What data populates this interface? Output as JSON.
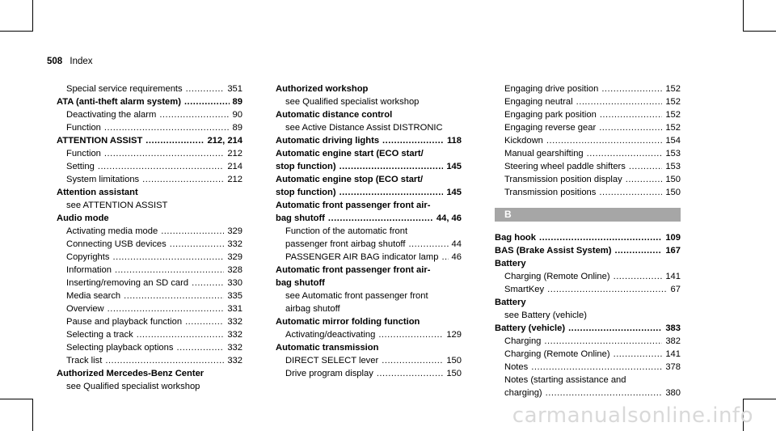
{
  "header": {
    "page_number": "508",
    "title": "Index"
  },
  "col1": [
    {
      "text": "Special service requirements",
      "page": "351",
      "style": "sub"
    },
    {
      "text": "ATA (anti-theft alarm system)",
      "page": "89",
      "style": "head"
    },
    {
      "text": "Deactivating the alarm",
      "page": "90",
      "style": "sub"
    },
    {
      "text": "Function",
      "page": "89",
      "style": "sub"
    },
    {
      "text": "ATTENTION ASSIST",
      "page": "212, 214",
      "style": "head"
    },
    {
      "text": "Function",
      "page": "212",
      "style": "sub"
    },
    {
      "text": "Setting",
      "page": "214",
      "style": "sub"
    },
    {
      "text": "System limitations",
      "page": "212",
      "style": "sub"
    },
    {
      "text": "Attention assistant",
      "page": "",
      "style": "head"
    },
    {
      "text": "see ATTENTION ASSIST",
      "page": "",
      "style": "sub"
    },
    {
      "text": "Audio mode",
      "page": "",
      "style": "head"
    },
    {
      "text": "Activating media mode",
      "page": "329",
      "style": "sub"
    },
    {
      "text": "Connecting USB devices",
      "page": "332",
      "style": "sub"
    },
    {
      "text": "Copyrights",
      "page": "329",
      "style": "sub"
    },
    {
      "text": "Information",
      "page": "328",
      "style": "sub"
    },
    {
      "text": "Inserting/removing an SD card",
      "page": "330",
      "style": "sub"
    },
    {
      "text": "Media search",
      "page": "335",
      "style": "sub"
    },
    {
      "text": "Overview",
      "page": "331",
      "style": "sub"
    },
    {
      "text": "Pause and playback function",
      "page": "332",
      "style": "sub"
    },
    {
      "text": "Selecting a track",
      "page": "332",
      "style": "sub"
    },
    {
      "text": "Selecting playback options",
      "page": "332",
      "style": "sub"
    },
    {
      "text": "Track list",
      "page": "332",
      "style": "sub"
    },
    {
      "text": "Authorized Mercedes-Benz Center",
      "page": "",
      "style": "head"
    },
    {
      "text": "see Qualified specialist workshop",
      "page": "",
      "style": "sub"
    }
  ],
  "col2": [
    {
      "text": "Authorized workshop",
      "page": "",
      "style": "head"
    },
    {
      "text": "see Qualified specialist workshop",
      "page": "",
      "style": "sub"
    },
    {
      "text": "Automatic distance control",
      "page": "",
      "style": "head"
    },
    {
      "text": "see Active Distance Assist DISTRONIC",
      "page": "",
      "style": "sub"
    },
    {
      "text": "Automatic driving lights",
      "page": "118",
      "style": "head"
    },
    {
      "text": "Automatic engine start (ECO start/",
      "page": "",
      "style": "head"
    },
    {
      "text": "stop function)",
      "page": "145",
      "style": "head"
    },
    {
      "text": "Automatic engine stop (ECO start/",
      "page": "",
      "style": "head"
    },
    {
      "text": "stop function)",
      "page": "145",
      "style": "head"
    },
    {
      "text": "Automatic front passenger front air-",
      "page": "",
      "style": "head"
    },
    {
      "text": "bag shutoff",
      "page": "44, 46",
      "style": "head"
    },
    {
      "text": "Function of the automatic front",
      "page": "",
      "style": "sub"
    },
    {
      "text": "passenger front airbag shutoff",
      "page": "44",
      "style": "sub"
    },
    {
      "text": "PASSENGER AIR BAG indicator lamp",
      "page": "46",
      "style": "sub"
    },
    {
      "text": "Automatic front passenger front air-",
      "page": "",
      "style": "head"
    },
    {
      "text": "bag shutoff",
      "page": "",
      "style": "head"
    },
    {
      "text": "see Automatic front passenger front",
      "page": "",
      "style": "sub"
    },
    {
      "text": "airbag shutoff",
      "page": "",
      "style": "sub"
    },
    {
      "text": "Automatic mirror folding function",
      "page": "",
      "style": "head"
    },
    {
      "text": "Activating/deactivating",
      "page": "129",
      "style": "sub"
    },
    {
      "text": "Automatic transmission",
      "page": "",
      "style": "head"
    },
    {
      "text": "DIRECT SELECT lever",
      "page": "150",
      "style": "sub"
    },
    {
      "text": "Drive program display",
      "page": "150",
      "style": "sub"
    }
  ],
  "col3_top": [
    {
      "text": "Engaging drive position",
      "page": "152",
      "style": "sub"
    },
    {
      "text": "Engaging neutral",
      "page": "152",
      "style": "sub"
    },
    {
      "text": "Engaging park position",
      "page": "152",
      "style": "sub"
    },
    {
      "text": "Engaging reverse gear",
      "page": "152",
      "style": "sub"
    },
    {
      "text": "Kickdown",
      "page": "154",
      "style": "sub"
    },
    {
      "text": "Manual gearshifting",
      "page": "153",
      "style": "sub"
    },
    {
      "text": "Steering wheel paddle shifters",
      "page": "153",
      "style": "sub"
    },
    {
      "text": "Transmission position display",
      "page": "150",
      "style": "sub"
    },
    {
      "text": "Transmission positions",
      "page": "150",
      "style": "sub"
    }
  ],
  "section_letter": "B",
  "col3_bottom": [
    {
      "text": "Bag hook",
      "page": "109",
      "style": "head"
    },
    {
      "text": "BAS (Brake Assist System)",
      "page": "167",
      "style": "head"
    },
    {
      "text": "Battery",
      "page": "",
      "style": "head"
    },
    {
      "text": "Charging (Remote Online)",
      "page": "141",
      "style": "sub"
    },
    {
      "text": "SmartKey",
      "page": "67",
      "style": "sub"
    },
    {
      "text": "Battery",
      "page": "",
      "style": "head"
    },
    {
      "text": "see Battery (vehicle)",
      "page": "",
      "style": "sub"
    },
    {
      "text": "Battery (vehicle)",
      "page": "383",
      "style": "head"
    },
    {
      "text": "Charging",
      "page": "382",
      "style": "sub"
    },
    {
      "text": "Charging (Remote Online)",
      "page": "141",
      "style": "sub"
    },
    {
      "text": "Notes",
      "page": "378",
      "style": "sub"
    },
    {
      "text": "Notes (starting assistance and",
      "page": "",
      "style": "sub"
    },
    {
      "text": "charging)",
      "page": "380",
      "style": "sub"
    }
  ],
  "watermark": "carmanualsonline.info"
}
